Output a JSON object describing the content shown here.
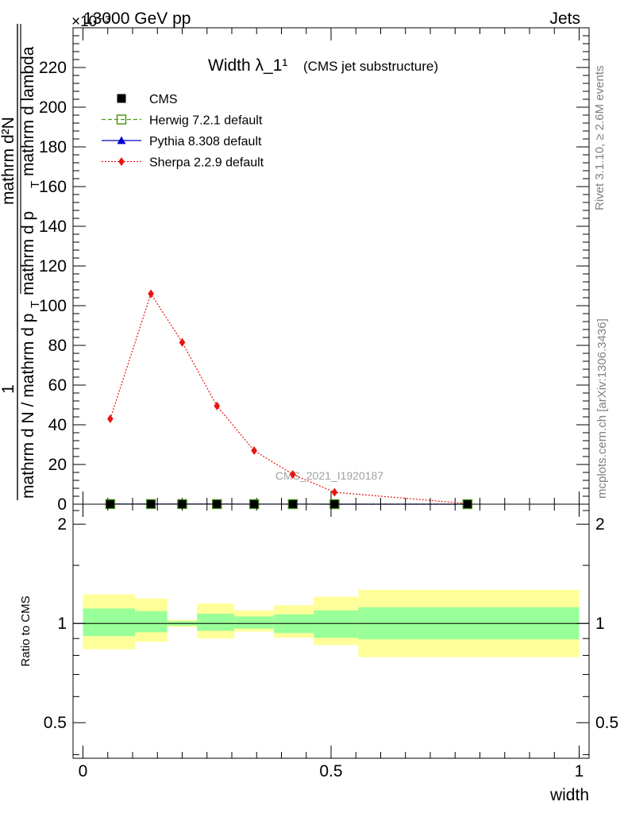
{
  "header": {
    "left": "13000 GeV pp",
    "right": "Jets",
    "exponent": "×10⁻³"
  },
  "side_text": {
    "rivet": "Rivet 3.1.10, ≥ 2.6M events",
    "mcplots": "mcplots.cern.ch [arXiv:1306.3436]"
  },
  "watermark": "CMS_2021_I1920187",
  "chart_data": [
    {
      "type": "scatter",
      "panel": "main",
      "title": "Width λ_1¹",
      "subtitle": "(CMS jet substructure)",
      "ylabel_parts": {
        "one": "1",
        "den1": "mathrm d N / mathrm d p",
        "sub1": "T",
        "num2": "mathrm d²N",
        "den2": "mathrm d p",
        "sub2": "T",
        "den2b": "mathrm d lambda"
      },
      "ylim": [
        0,
        240
      ],
      "y_ticks": [
        0,
        20,
        40,
        60,
        80,
        100,
        120,
        140,
        160,
        180,
        200,
        220
      ],
      "y_ticks_text": [
        "0",
        "20",
        "40",
        "60",
        "80",
        "100",
        "120",
        "140",
        "160",
        "180",
        "200",
        "220"
      ],
      "legend_position": "top-left",
      "legend": [
        {
          "name": "CMS",
          "color": "#000000",
          "marker": "square-filled",
          "line": "none"
        },
        {
          "name": "Herwig 7.2.1 default",
          "color": "#4a9a1a",
          "marker": "square-open",
          "line": "dashed"
        },
        {
          "name": "Pythia 8.308 default",
          "color": "#0000cc",
          "marker": "triangle",
          "line": "solid"
        },
        {
          "name": "Sherpa 2.2.9 default",
          "color": "#e8150e",
          "marker": "diamond",
          "line": "dotted"
        }
      ],
      "x": [
        0.055,
        0.137,
        0.2,
        0.27,
        0.345,
        0.423,
        0.507,
        0.775
      ],
      "series": [
        {
          "name": "CMS",
          "values": [
            0.05,
            0.06,
            0.05,
            0.04,
            0.03,
            0.02,
            0.01,
            0.0
          ]
        },
        {
          "name": "Herwig 7.2.1 default",
          "values": [
            0.05,
            0.06,
            0.05,
            0.04,
            0.03,
            0.02,
            0.01,
            0.0
          ]
        },
        {
          "name": "Pythia 8.308 default",
          "values": [
            0.05,
            0.06,
            0.05,
            0.04,
            0.03,
            0.02,
            0.01,
            0.0
          ]
        },
        {
          "name": "Sherpa 2.2.9 default",
          "values": [
            43,
            106,
            81.5,
            49.5,
            27,
            15,
            6,
            0.3
          ]
        }
      ]
    },
    {
      "type": "area",
      "panel": "ratio",
      "ylabel": "Ratio to CMS",
      "xlabel": "width",
      "yscale": "log",
      "ylim": [
        0.39,
        2.3
      ],
      "xlim": [
        -0.02,
        1.02
      ],
      "y_ticks": [
        0.5,
        1,
        2
      ],
      "y_ticks_text": [
        "0.5",
        "1",
        "2"
      ],
      "x_ticks": [
        0,
        0.5,
        1
      ],
      "x_ticks_text": [
        "0",
        "0.5",
        "1"
      ],
      "reference_line": 1,
      "bin_edges": [
        0,
        0.105,
        0.17,
        0.23,
        0.305,
        0.385,
        0.465,
        0.555,
        1.0
      ],
      "stat_band": {
        "color": "#99ff99",
        "lower": [
          0.915,
          0.94,
          0.985,
          0.95,
          0.965,
          0.935,
          0.905,
          0.895
        ],
        "upper": [
          1.11,
          1.09,
          1.015,
          1.07,
          1.05,
          1.065,
          1.095,
          1.12
        ]
      },
      "total_band": {
        "color": "#ffff99",
        "lower": [
          0.835,
          0.88,
          0.975,
          0.9,
          0.945,
          0.905,
          0.86,
          0.79
        ],
        "upper": [
          1.225,
          1.19,
          1.025,
          1.15,
          1.095,
          1.135,
          1.205,
          1.265
        ]
      }
    }
  ]
}
